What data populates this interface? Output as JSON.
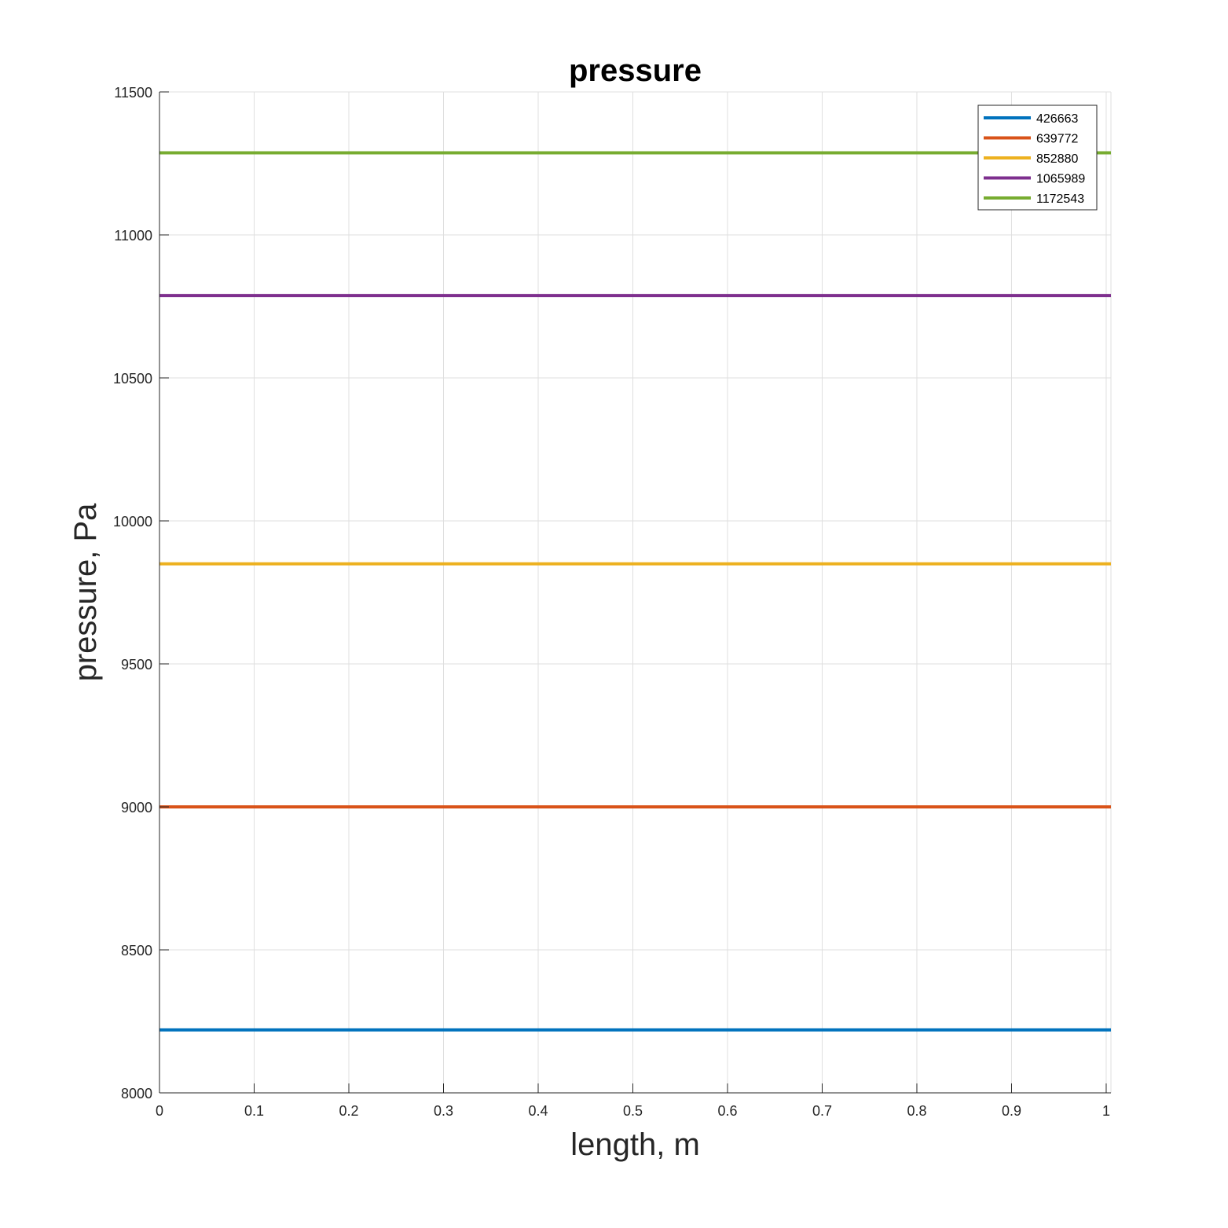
{
  "chart_data": {
    "type": "line",
    "title": "pressure",
    "xlabel": "length, m",
    "ylabel": "pressure, Pa",
    "xlim": [
      0,
      1.005
    ],
    "ylim": [
      8000,
      11500
    ],
    "xticks": [
      0,
      0.1,
      0.2,
      0.3,
      0.4,
      0.5,
      0.6,
      0.7,
      0.8,
      0.9,
      1
    ],
    "xtick_labels": [
      "0",
      "0.1",
      "0.2",
      "0.3",
      "0.4",
      "0.5",
      "0.6",
      "0.7",
      "0.8",
      "0.9",
      "1"
    ],
    "yticks": [
      8000,
      8500,
      9000,
      9500,
      10000,
      10500,
      11000,
      11500
    ],
    "ytick_labels": [
      "8000",
      "8500",
      "9000",
      "9500",
      "10000",
      "10500",
      "11000",
      "11500"
    ],
    "grid": true,
    "legend_position": "top-right",
    "x": [
      0,
      1.005
    ],
    "series": [
      {
        "name": "426663",
        "color": "#0072BD",
        "values": [
          8220,
          8220
        ]
      },
      {
        "name": "639772",
        "color": "#D95319",
        "values": [
          9000,
          9000
        ]
      },
      {
        "name": "852880",
        "color": "#EDB120",
        "values": [
          9850,
          9850
        ]
      },
      {
        "name": "1065989",
        "color": "#7E2F8E",
        "values": [
          10788,
          10788
        ]
      },
      {
        "name": "1172543",
        "color": "#77AC30",
        "values": [
          11287,
          11287
        ]
      }
    ]
  }
}
